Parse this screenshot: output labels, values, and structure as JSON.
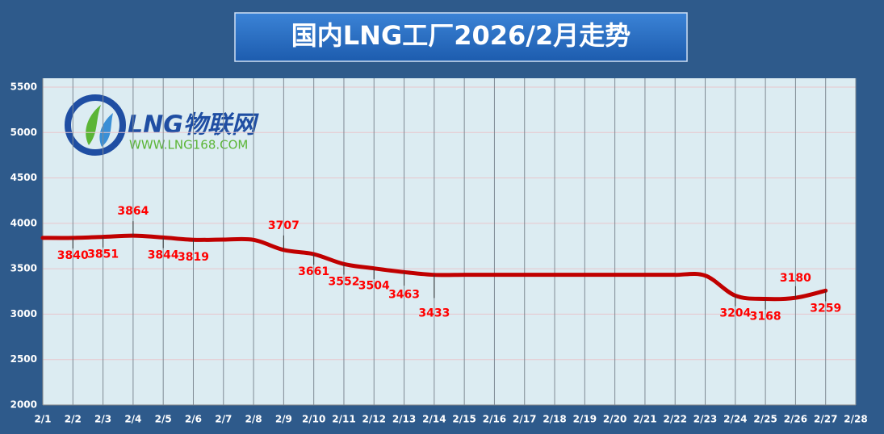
{
  "chart_data": {
    "type": "line",
    "title": "国内LNG工厂2026/2月走势",
    "categories": [
      "2/1",
      "2/2",
      "2/3",
      "2/4",
      "2/5",
      "2/6",
      "2/7",
      "2/8",
      "2/9",
      "2/10",
      "2/11",
      "2/12",
      "2/13",
      "2/14",
      "2/15",
      "2/16",
      "2/17",
      "2/18",
      "2/19",
      "2/20",
      "2/21",
      "2/22",
      "2/23",
      "2/24",
      "2/25",
      "2/26",
      "2/27",
      "2/28"
    ],
    "series": [
      {
        "color": "#c00000",
        "values": [
          3840,
          3840,
          3851,
          3864,
          3844,
          3819,
          3821,
          3818,
          3707,
          3661,
          3552,
          3504,
          3463,
          3433,
          3433,
          3433,
          3433,
          3433,
          3433,
          3433,
          3433,
          3433,
          3425,
          3204,
          3168,
          3180,
          3259,
          null
        ],
        "value_labels": [
          null,
          "3840",
          "3851",
          "3864",
          "3844",
          "3819",
          null,
          null,
          "3707",
          "3661",
          "3552",
          "3504",
          "3463",
          "3433",
          null,
          null,
          null,
          null,
          null,
          null,
          null,
          null,
          null,
          "3204",
          "3168",
          "3180",
          "3259",
          null
        ]
      }
    ],
    "ylim": [
      2000,
      5500
    ],
    "yticks": [
      2000,
      2500,
      3000,
      3500,
      4000,
      4500,
      5000,
      5500
    ],
    "grid": true
  },
  "logo": {
    "name": "LNG物联网",
    "url": "WWW.LNG168.COM"
  }
}
